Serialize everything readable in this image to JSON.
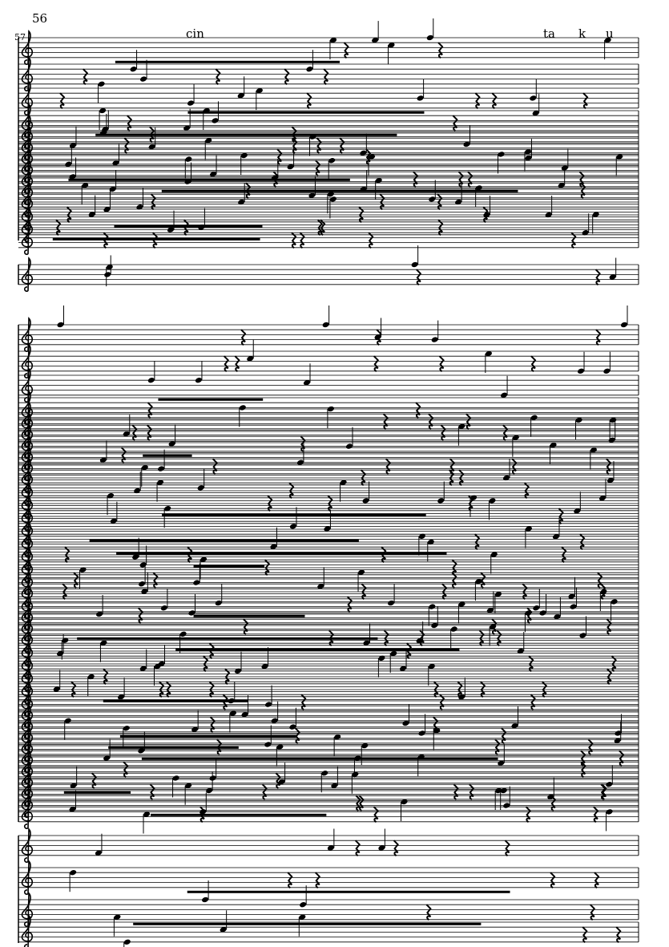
{
  "page": {
    "page_number": "56",
    "measure_number": "57"
  },
  "lyrics": {
    "syllable_1": "cin",
    "syllable_2": "ta",
    "syllable_3": "k",
    "syllable_4": "u"
  },
  "notation": {
    "clef": "treble-clef-icon",
    "rest": "quarter-rest-icon",
    "ink_color": "#000000"
  }
}
